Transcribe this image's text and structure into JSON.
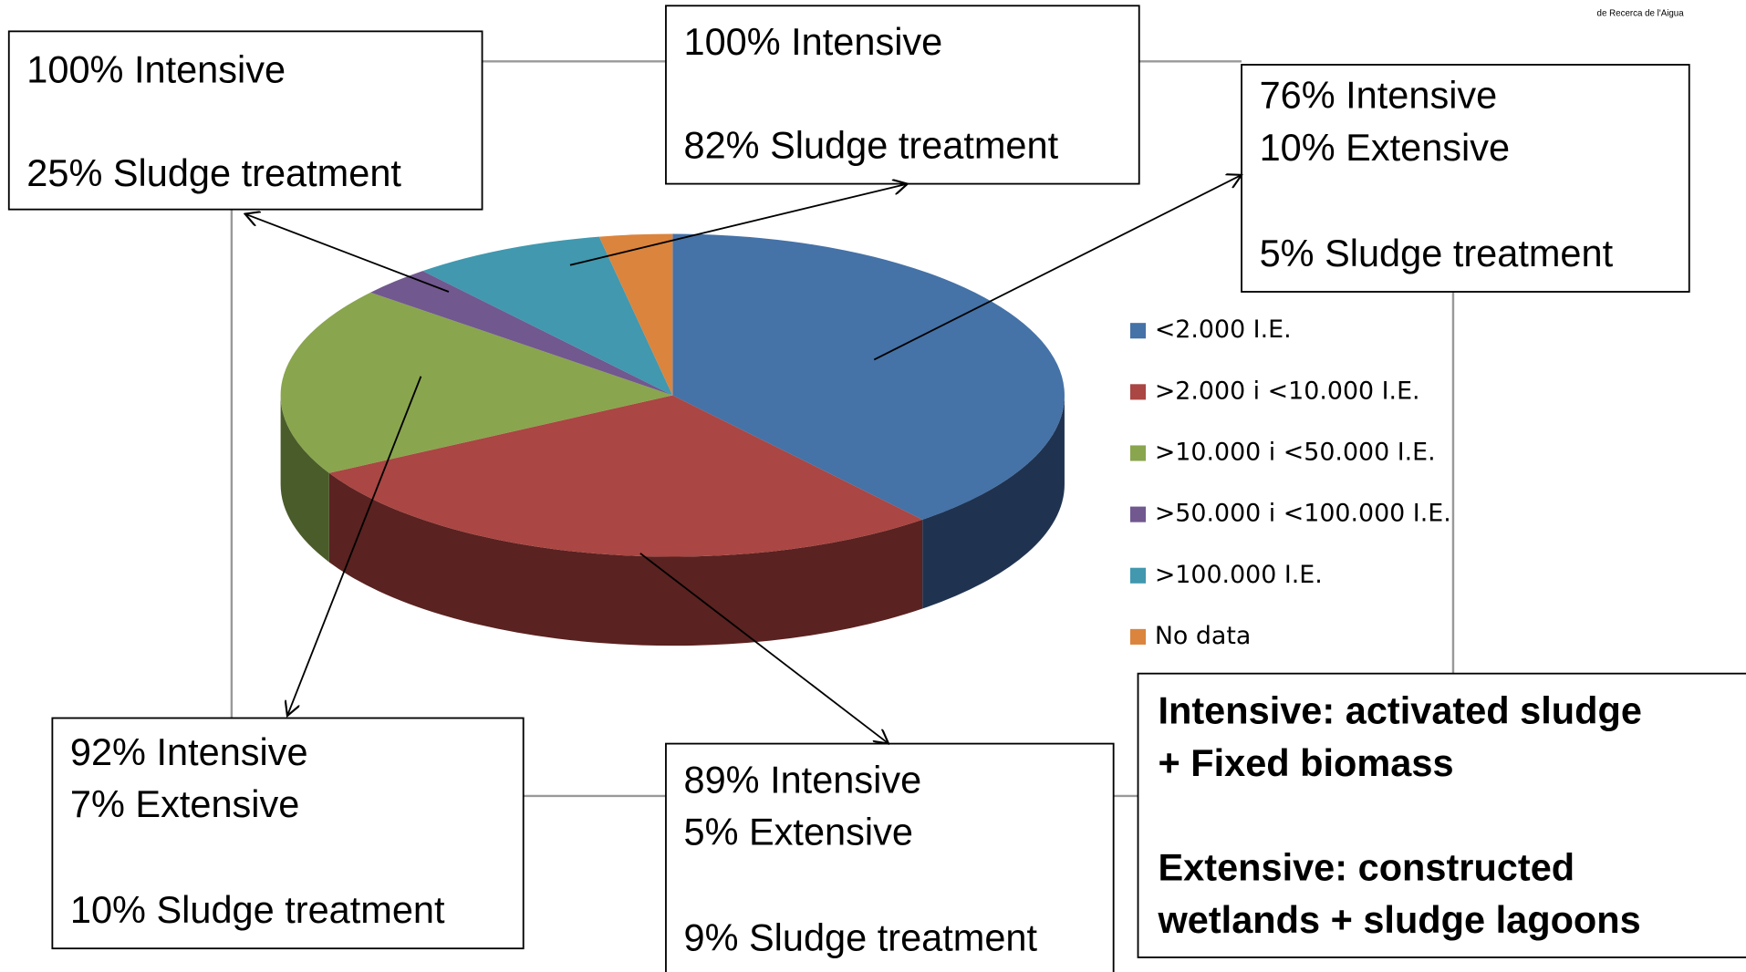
{
  "chart_data": {
    "type": "pie",
    "categories": [
      "<2.000 I.E.",
      ">2.000 i <10.000 I.E.",
      ">10.000 i <50.000 I.E.",
      ">50.000 i <100.000 I.E.",
      ">100.000 I.E.",
      "No data"
    ],
    "values": [
      39,
      28,
      19,
      3,
      8,
      3
    ],
    "colors": [
      "#4572a7",
      "#aa4643",
      "#89a54e",
      "#71588f",
      "#4198af",
      "#db843d"
    ],
    "side_colors": [
      "#1f3350",
      "#5a2220",
      "#4a5c2a",
      "#3e3050",
      "#22566a",
      "#7a4520"
    ],
    "legend": true
  },
  "annotations": [
    {
      "lines": [
        "100% Intensive",
        "25% Sludge treatment"
      ]
    },
    {
      "lines": [
        "100% Intensive",
        "82% Sludge treatment"
      ]
    },
    {
      "lines": [
        "76% Intensive",
        "10% Extensive",
        "5% Sludge treatment"
      ]
    },
    {
      "lines": [
        "92% Intensive",
        "7% Extensive",
        "10% Sludge treatment"
      ]
    },
    {
      "lines": [
        "89% Intensive",
        "5% Extensive",
        "9% Sludge treatment"
      ]
    }
  ],
  "definitions": {
    "lines": [
      "Intensive: activated sludge",
      "+ Fixed biomass",
      "Extensive: constructed",
      "wetlands + sludge lagoons"
    ]
  },
  "logo_text": "de Recerca de l'Aigua"
}
